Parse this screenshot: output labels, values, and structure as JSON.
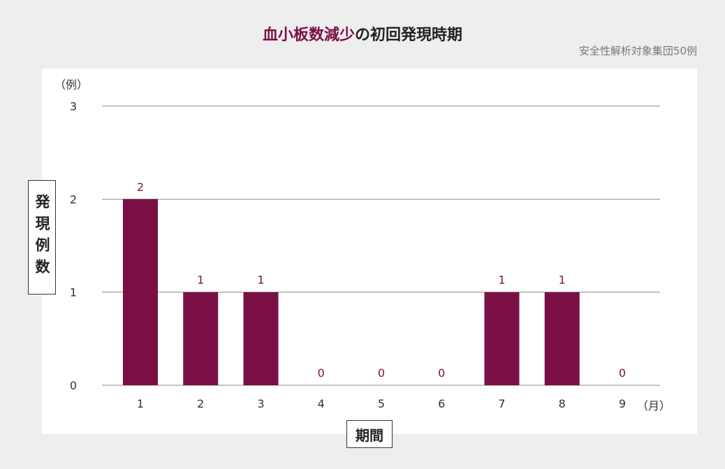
{
  "title": {
    "highlight": "血小板数減少",
    "rest": "の初回発現時期",
    "highlight_color": "#7a0f45"
  },
  "subtitle": "安全性解析対象集団50例",
  "chart_data": {
    "type": "bar",
    "title": "血小板数減少の初回発現時期",
    "subtitle": "安全性解析対象集団50例",
    "xlabel": "期間",
    "x_unit": "（月）",
    "ylabel": "発現例数",
    "y_unit": "（例）",
    "categories": [
      "1",
      "2",
      "3",
      "4",
      "5",
      "6",
      "7",
      "8",
      "9"
    ],
    "values": [
      2,
      1,
      1,
      0,
      0,
      0,
      1,
      1,
      0
    ],
    "data_labels": [
      "2",
      "1",
      "1",
      "0",
      "0",
      "0",
      "1",
      "1",
      "0"
    ],
    "yticks": [
      "0",
      "1",
      "2",
      "3"
    ],
    "ylim": [
      0,
      3
    ],
    "grid": true,
    "bar_color": "#7a0f45",
    "label_color": "#7a0f45"
  }
}
